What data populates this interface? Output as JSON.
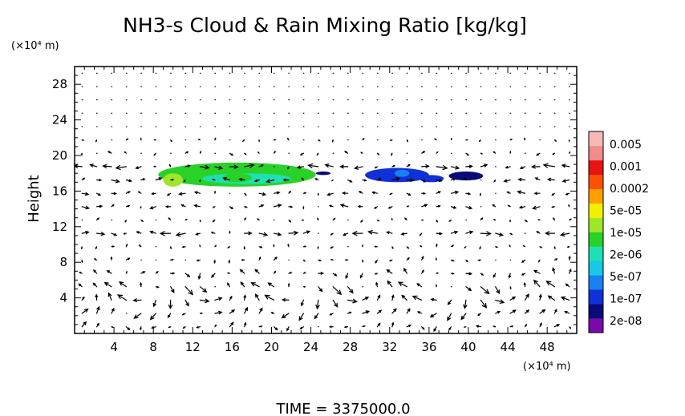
{
  "chart_data": {
    "type": "heatmap",
    "title": "NH3-s Cloud & Rain Mixing Ratio [kg/kg]",
    "ylabel": "Height",
    "y_unit_label": "(×10⁴ m)",
    "x_unit_label": "(×10⁴ m)",
    "xlim": [
      0,
      51
    ],
    "ylim": [
      0,
      30
    ],
    "x_ticks": [
      4,
      8,
      12,
      16,
      20,
      24,
      28,
      32,
      36,
      40,
      44,
      48
    ],
    "y_ticks": [
      4,
      8,
      12,
      16,
      20,
      24,
      28
    ],
    "colorbar": {
      "labels": [
        "0.005",
        "0.001",
        "0.0002",
        "5e-05",
        "1e-05",
        "2e-06",
        "5e-07",
        "1e-07",
        "2e-08"
      ],
      "colors": [
        "#7a0aa8",
        "#0a0a78",
        "#1030d8",
        "#1a80f0",
        "#19c8e6",
        "#1ee0b4",
        "#28d228",
        "#a0e628",
        "#f0f000",
        "#ffa000",
        "#ff5000",
        "#e61414",
        "#f08c8c",
        "#f5b9b9"
      ]
    },
    "cloud_patches": [
      {
        "x": [
          8.5,
          24.5
        ],
        "y": [
          16.5,
          19.2
        ],
        "level": 6
      },
      {
        "x": [
          9.0,
          11.0
        ],
        "y": [
          16.5,
          18.0
        ],
        "level": 7
      },
      {
        "x": [
          13.0,
          22.0
        ],
        "y": [
          16.8,
          18.0
        ],
        "level": 5
      },
      {
        "x": [
          15.0,
          18.0
        ],
        "y": [
          17.0,
          18.0
        ],
        "level": 6
      },
      {
        "x": [
          24.5,
          26.0
        ],
        "y": [
          17.8,
          18.2
        ],
        "level": 1
      },
      {
        "x": [
          29.5,
          36.0
        ],
        "y": [
          17.0,
          18.6
        ],
        "level": 2
      },
      {
        "x": [
          32.5,
          34.0
        ],
        "y": [
          17.6,
          18.4
        ],
        "level": 3
      },
      {
        "x": [
          35.0,
          37.5
        ],
        "y": [
          17.0,
          17.8
        ],
        "level": 2
      },
      {
        "x": [
          38.0,
          41.5
        ],
        "y": [
          17.2,
          18.2
        ],
        "level": 1
      }
    ],
    "wind_field": "velocity vectors on a 1.5 × 1.5 grid; strongest horizontal flow in jets near heights 15, 19 and 11, circulation cells below 10"
  },
  "footer": {
    "time_label": "TIME  =  3375000.0"
  }
}
